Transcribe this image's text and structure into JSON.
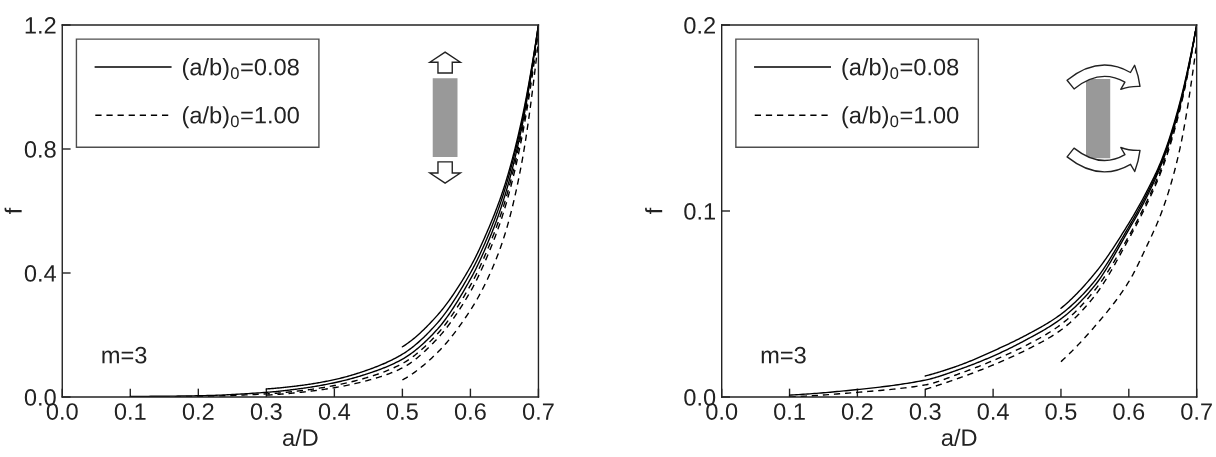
{
  "chart_data": [
    {
      "type": "line",
      "xlabel": "a/D",
      "ylabel": "f",
      "xlim": [
        0,
        0.7
      ],
      "xticks": [
        {
          "value": 0,
          "label": "0.0"
        },
        0.1,
        0.2,
        0.3,
        0.4,
        0.5,
        0.6,
        0.7
      ],
      "ylim": [
        0,
        1.2
      ],
      "yticks": [
        {
          "value": 0,
          "label": "0.0"
        },
        0.4,
        0.8,
        1.2
      ],
      "legend": "top left",
      "annotations": [
        "m=3"
      ],
      "series": [
        {
          "name": "(a/b)$_{0}$=0.08",
          "color": "#000000",
          "line_style": "solid",
          "x": [
            0.1,
            0.2,
            0.3,
            0.35,
            0.4,
            0.45,
            0.5,
            0.55,
            0.6,
            0.625,
            0.65,
            0.675,
            0.7
          ],
          "values": [
            0.002,
            0.004,
            0.015,
            0.027,
            0.046,
            0.076,
            0.122,
            0.215,
            0.38,
            0.495,
            0.645,
            0.865,
            1.2
          ]
        },
        {
          "color": "#000000",
          "line_style": "solid",
          "x": [
            0.3,
            0.35,
            0.4,
            0.45,
            0.5,
            0.55,
            0.6,
            0.625,
            0.65,
            0.675,
            0.7
          ],
          "values": [
            0.026,
            0.037,
            0.056,
            0.088,
            0.138,
            0.235,
            0.4,
            0.515,
            0.665,
            0.88,
            1.2
          ]
        },
        {
          "color": "#000000",
          "line_style": "solid",
          "x": [
            0.5,
            0.55,
            0.6,
            0.625,
            0.65,
            0.675,
            0.7
          ],
          "values": [
            0.162,
            0.26,
            0.42,
            0.535,
            0.68,
            0.89,
            1.2
          ]
        },
        {
          "name": "(a/b)$_{0}$=1.00",
          "color": "#000000",
          "line_style": "dashed",
          "x": [
            0.1,
            0.2,
            0.3,
            0.35,
            0.4,
            0.45,
            0.5,
            0.55,
            0.6,
            0.625,
            0.65,
            0.675,
            0.7
          ],
          "values": [
            0.0,
            0.002,
            0.01,
            0.02,
            0.037,
            0.064,
            0.108,
            0.2,
            0.36,
            0.475,
            0.625,
            0.85,
            1.19
          ]
        },
        {
          "color": "#000000",
          "line_style": "dashed",
          "x": [
            0.3,
            0.35,
            0.4,
            0.45,
            0.5,
            0.55,
            0.6,
            0.625,
            0.65,
            0.675,
            0.7
          ],
          "values": [
            0.006,
            0.015,
            0.03,
            0.054,
            0.094,
            0.185,
            0.34,
            0.455,
            0.605,
            0.83,
            1.18
          ]
        },
        {
          "color": "#000000",
          "line_style": "dashed",
          "x": [
            0.5,
            0.55,
            0.6,
            0.625,
            0.65,
            0.675,
            0.7
          ],
          "values": [
            0.055,
            0.14,
            0.28,
            0.38,
            0.52,
            0.75,
            1.15
          ]
        }
      ]
    },
    {
      "type": "line",
      "xlabel": "a/D",
      "ylabel": "f",
      "xlim": [
        0,
        0.7
      ],
      "xticks": [
        {
          "value": 0,
          "label": "0.0"
        },
        0.1,
        0.2,
        0.3,
        0.4,
        0.5,
        0.6,
        0.7
      ],
      "ylim": [
        0,
        0.2
      ],
      "yticks": [
        {
          "value": 0,
          "label": "0.0"
        },
        0.1,
        0.2
      ],
      "legend": "top left",
      "annotations": [
        "m=3"
      ],
      "series": [
        {
          "name": "(a/b)$_{0}$=0.08",
          "color": "#000000",
          "line_style": "solid",
          "x": [
            0.1,
            0.2,
            0.3,
            0.35,
            0.4,
            0.45,
            0.5,
            0.55,
            0.6,
            0.625,
            0.65,
            0.675,
            0.7
          ],
          "values": [
            0.001,
            0.004,
            0.0091,
            0.0148,
            0.022,
            0.031,
            0.042,
            0.06,
            0.09,
            0.1065,
            0.127,
            0.156,
            0.2
          ]
        },
        {
          "color": "#000000",
          "line_style": "solid",
          "x": [
            0.3,
            0.35,
            0.4,
            0.45,
            0.5,
            0.55,
            0.6,
            0.625,
            0.65,
            0.675,
            0.7
          ],
          "values": [
            0.0113,
            0.017,
            0.0247,
            0.0335,
            0.0445,
            0.0625,
            0.0915,
            0.108,
            0.128,
            0.157,
            0.2
          ]
        },
        {
          "color": "#000000",
          "line_style": "solid",
          "x": [
            0.5,
            0.55,
            0.6,
            0.625,
            0.65,
            0.675,
            0.7
          ],
          "values": [
            0.0477,
            0.0665,
            0.0934,
            0.1095,
            0.129,
            0.158,
            0.2
          ]
        },
        {
          "name": "(a/b)$_{0}$=1.00",
          "color": "#000000",
          "line_style": "dashed",
          "x": [
            0.1,
            0.2,
            0.3,
            0.35,
            0.4,
            0.45,
            0.5,
            0.55,
            0.6,
            0.625,
            0.65,
            0.675,
            0.7
          ],
          "values": [
            0.0,
            0.0025,
            0.0065,
            0.0125,
            0.0196,
            0.028,
            0.039,
            0.0575,
            0.0865,
            0.104,
            0.125,
            0.155,
            0.2
          ]
        },
        {
          "color": "#000000",
          "line_style": "dashed",
          "x": [
            0.3,
            0.35,
            0.4,
            0.45,
            0.5,
            0.55,
            0.6,
            0.625,
            0.65,
            0.675,
            0.7
          ],
          "values": [
            0.0041,
            0.0102,
            0.0172,
            0.0255,
            0.036,
            0.0545,
            0.085,
            0.1025,
            0.1235,
            0.154,
            0.2
          ]
        },
        {
          "color": "#000000",
          "line_style": "dashed",
          "x": [
            0.5,
            0.55,
            0.6,
            0.625,
            0.65,
            0.675,
            0.7
          ],
          "values": [
            0.019,
            0.038,
            0.062,
            0.08,
            0.101,
            0.133,
            0.19
          ]
        }
      ]
    }
  ]
}
